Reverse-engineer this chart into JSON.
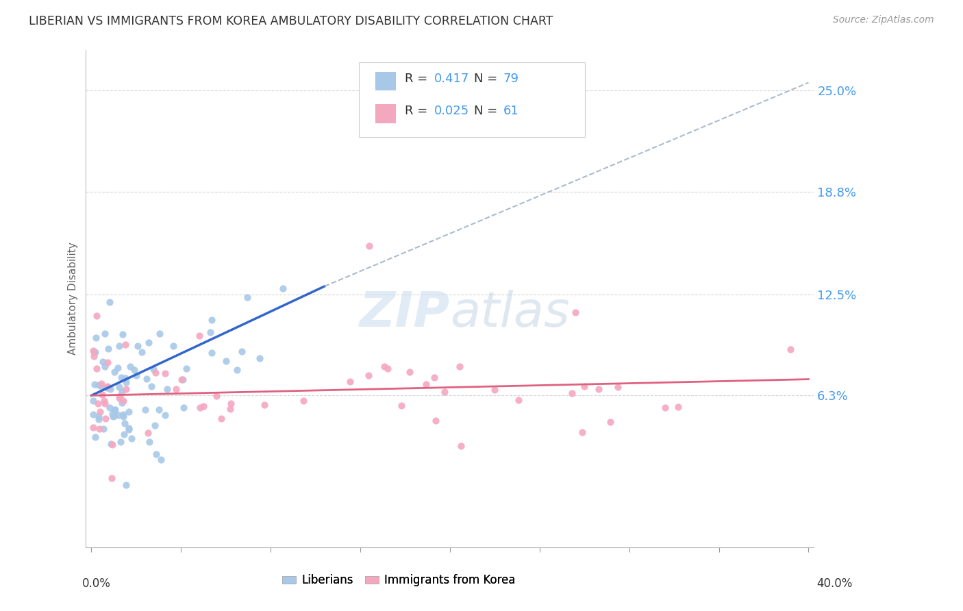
{
  "title": "LIBERIAN VS IMMIGRANTS FROM KOREA AMBULATORY DISABILITY CORRELATION CHART",
  "source": "Source: ZipAtlas.com",
  "ylabel": "Ambulatory Disability",
  "ytick_labels": [
    "6.3%",
    "12.5%",
    "18.8%",
    "25.0%"
  ],
  "ytick_values": [
    0.063,
    0.125,
    0.188,
    0.25
  ],
  "xlim": [
    0.0,
    0.4
  ],
  "ylim": [
    -0.03,
    0.275
  ],
  "watermark": "ZIPatlas",
  "color_liberian": "#A8C8E8",
  "color_korea": "#F4A8C0",
  "color_line_blue": "#3366CC",
  "color_line_pink": "#E06080",
  "color_dash": "#AABBCC",
  "color_blue_text": "#4499EE",
  "color_grid": "#CCCCCC",
  "background_color": "#FFFFFF",
  "legend_R1": "R = ",
  "legend_V1": "0.417",
  "legend_N1": "N = ",
  "legend_NV1": "79",
  "legend_R2": "R = ",
  "legend_V2": "0.025",
  "legend_N2": "N = ",
  "legend_NV2": "61"
}
